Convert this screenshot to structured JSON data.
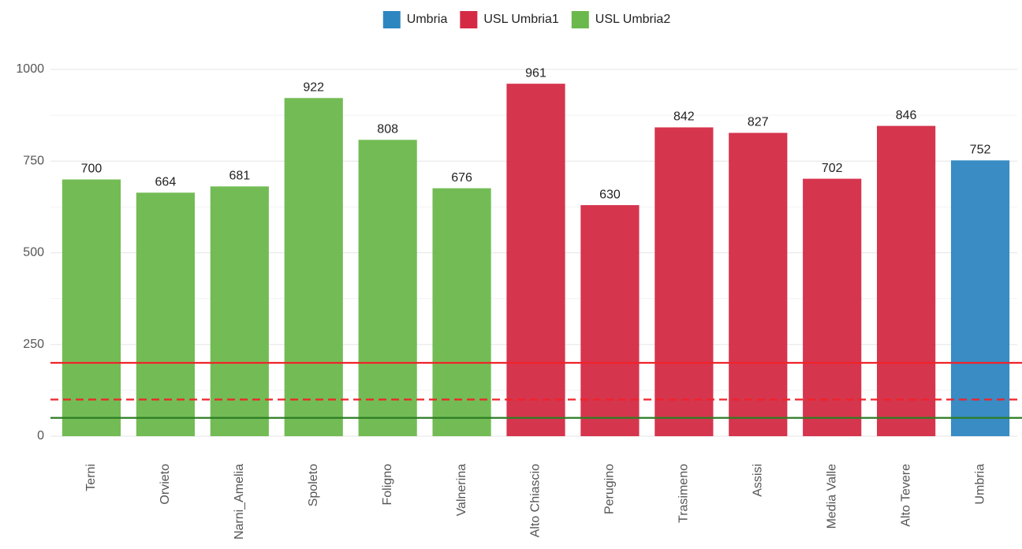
{
  "chart_data": {
    "type": "bar",
    "categories": [
      "Terni",
      "Orvieto",
      "Narni_Amelia",
      "Spoleto",
      "Foligno",
      "Valnerina",
      "Alto Chiascio",
      "Perugino",
      "Trasimeno",
      "Assisi",
      "Media Valle",
      "Alto Tevere",
      "Umbria"
    ],
    "series": [
      {
        "name": "Umbria",
        "color": "#2e86c1",
        "values": [
          null,
          null,
          null,
          null,
          null,
          null,
          null,
          null,
          null,
          null,
          null,
          null,
          752
        ]
      },
      {
        "name": "USL Umbria1",
        "color": "#d42a44",
        "values": [
          null,
          null,
          null,
          null,
          null,
          null,
          961,
          630,
          842,
          827,
          702,
          846,
          null
        ]
      },
      {
        "name": "USL Umbria2",
        "color": "#6bb84c",
        "values": [
          700,
          664,
          681,
          922,
          808,
          676,
          null,
          null,
          null,
          null,
          null,
          null,
          null
        ]
      }
    ],
    "ylim": [
      0,
      1000
    ],
    "yticks": [
      0,
      250,
      500,
      750,
      1000
    ],
    "minor_yticks": [
      125,
      375,
      625,
      875
    ],
    "grid": true,
    "legend": "top",
    "reference_lines": [
      {
        "value": 200,
        "color": "#f0232a",
        "style": "solid"
      },
      {
        "value": 100,
        "color": "#f0232a",
        "style": "dashed"
      },
      {
        "value": 50,
        "color": "#2e7d24",
        "style": "solid"
      }
    ]
  }
}
